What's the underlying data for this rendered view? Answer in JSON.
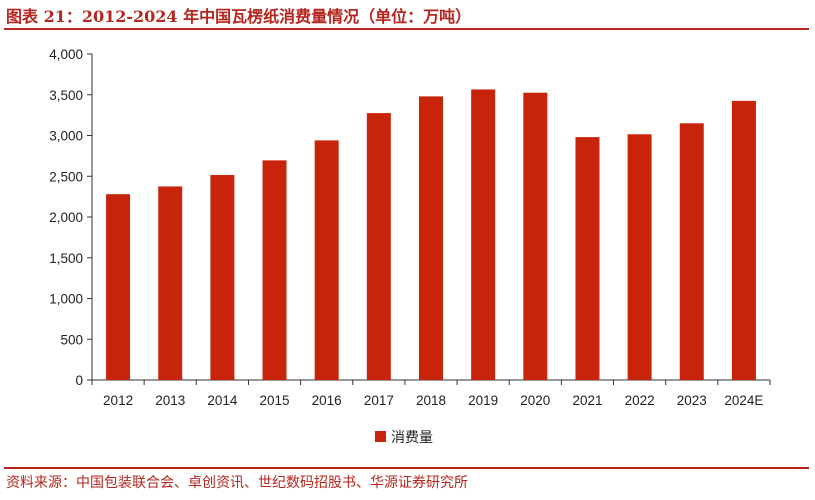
{
  "title": "图表 21：2012-2024 年中国瓦楞纸消费量情况（单位：万吨）",
  "source": "资料来源：中国包装联合会、卓创资讯、世纪数码招股书、华源证券研究所",
  "colors": {
    "accent": "#b5261e",
    "bar": "#c8230b"
  },
  "chart_data": {
    "type": "bar",
    "title": "图表 21：2012-2024 年中国瓦楞纸消费量情况（单位：万吨）",
    "categories": [
      "2012",
      "2013",
      "2014",
      "2015",
      "2016",
      "2017",
      "2018",
      "2019",
      "2020",
      "2021",
      "2022",
      "2023",
      "2024E"
    ],
    "series": [
      {
        "name": "消费量",
        "values": [
          2280,
          2375,
          2515,
          2695,
          2940,
          3275,
          3480,
          3565,
          3525,
          2980,
          3015,
          3150,
          3425
        ]
      }
    ],
    "yticks": [
      "0",
      "500",
      "1,000",
      "1,500",
      "2,000",
      "2,500",
      "3,000",
      "3,500",
      "4,000"
    ],
    "ylim": [
      0,
      4000
    ],
    "grid": false,
    "legend": "bottom-center"
  }
}
